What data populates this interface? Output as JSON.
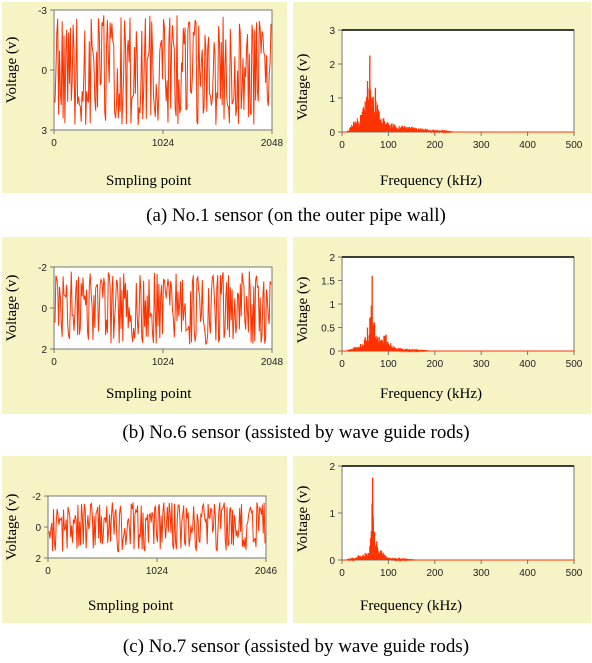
{
  "colors": {
    "panel_bg": "#f6f3c5",
    "plot_bg": "#ffffff",
    "signal": "#ff3300",
    "axis": "#777777",
    "frame": "#000000"
  },
  "rows": [
    {
      "caption": "(a)    No.1 sensor (on the outer pipe wall)",
      "time": {
        "ylabel": "Voltage (v)",
        "xlabel": "Smpling point",
        "xticks": [
          "0",
          "1024",
          "2048"
        ],
        "yticks": [
          "-3",
          "0",
          "3"
        ]
      },
      "freq": {
        "ylabel": "Voltage (v)",
        "xlabel": "Frequency (kHz)",
        "xticks": [
          "0",
          "100",
          "200",
          "300",
          "400",
          "500"
        ],
        "yticks": [
          "3",
          "2",
          "1",
          "0"
        ]
      }
    },
    {
      "caption": "(b)    No.6 sensor (assisted by wave guide rods)",
      "time": {
        "ylabel": "Voltage (v)",
        "xlabel": "Smpling point",
        "xticks": [
          "0",
          "1024",
          "2048"
        ],
        "yticks": [
          "-2",
          "0",
          "2"
        ]
      },
      "freq": {
        "ylabel": "Voltage (v)",
        "xlabel": "Frequency (kHz)",
        "xticks": [
          "0",
          "100",
          "200",
          "300",
          "400",
          "500"
        ],
        "yticks": [
          "2",
          "1.5",
          "1",
          "0.5",
          "0"
        ]
      }
    },
    {
      "caption": "(c)    No.7 sensor (assisted by wave guide rods)",
      "time": {
        "ylabel": "Voltage (v)",
        "xlabel": "Smpling point",
        "xticks": [
          "0",
          "1024",
          "2046"
        ],
        "yticks": [
          "-2",
          "0",
          "2"
        ]
      },
      "freq": {
        "ylabel": "Voltage (v)",
        "xlabel": "Frequency (kHz)",
        "xticks": [
          "0",
          "100",
          "200",
          "300",
          "400",
          "500"
        ],
        "yticks": [
          "2",
          "1",
          "0"
        ]
      }
    }
  ],
  "chart_data": [
    {
      "type": "line",
      "panel": "(a) time",
      "xlabel": "Smpling point",
      "ylabel": "Voltage (v)",
      "xlim": [
        0,
        2048
      ],
      "ylim": [
        3,
        -3
      ],
      "y_axis_inverted": true,
      "signal": "random noise-like waveform, amplitude approx. ±2.5 V"
    },
    {
      "type": "line",
      "panel": "(a) spectrum",
      "xlabel": "Frequency (kHz)",
      "ylabel": "Voltage (v)",
      "xlim": [
        0,
        500
      ],
      "ylim": [
        0,
        3
      ],
      "peaks": [
        {
          "x": 25,
          "y": 0.3
        },
        {
          "x": 40,
          "y": 0.5
        },
        {
          "x": 50,
          "y": 0.9
        },
        {
          "x": 55,
          "y": 1.5
        },
        {
          "x": 60,
          "y": 2.25
        },
        {
          "x": 65,
          "y": 1.0
        },
        {
          "x": 72,
          "y": 1.3
        },
        {
          "x": 80,
          "y": 0.6
        },
        {
          "x": 90,
          "y": 0.4
        },
        {
          "x": 110,
          "y": 0.25
        },
        {
          "x": 150,
          "y": 0.15
        },
        {
          "x": 180,
          "y": 0.1
        }
      ]
    },
    {
      "type": "line",
      "panel": "(b) time",
      "xlabel": "Smpling point",
      "ylabel": "Voltage (v)",
      "xlim": [
        0,
        2048
      ],
      "ylim": [
        2,
        -2
      ],
      "y_axis_inverted": true,
      "signal": "random noise-like waveform, amplitude approx. ±1.8 V"
    },
    {
      "type": "line",
      "panel": "(b) spectrum",
      "xlabel": "Frequency (kHz)",
      "ylabel": "Voltage (v)",
      "xlim": [
        0,
        500
      ],
      "ylim": [
        0,
        2
      ],
      "peaks": [
        {
          "x": 40,
          "y": 0.15
        },
        {
          "x": 50,
          "y": 0.3
        },
        {
          "x": 55,
          "y": 0.5
        },
        {
          "x": 60,
          "y": 0.7
        },
        {
          "x": 65,
          "y": 1.6
        },
        {
          "x": 70,
          "y": 0.6
        },
        {
          "x": 80,
          "y": 0.3
        },
        {
          "x": 95,
          "y": 0.35
        },
        {
          "x": 110,
          "y": 0.1
        },
        {
          "x": 130,
          "y": 0.05
        }
      ]
    },
    {
      "type": "line",
      "panel": "(c) time",
      "xlabel": "Smpling point",
      "ylabel": "Voltage (v)",
      "xlim": [
        0,
        2046
      ],
      "ylim": [
        2,
        -2
      ],
      "y_axis_inverted": true,
      "signal": "random noise-like waveform, amplitude approx. ±1.5 V"
    },
    {
      "type": "line",
      "panel": "(c) spectrum",
      "xlabel": "Frequency (kHz)",
      "ylabel": "Voltage (v)",
      "xlim": [
        0,
        500
      ],
      "ylim": [
        0,
        2
      ],
      "peaks": [
        {
          "x": 35,
          "y": 0.1
        },
        {
          "x": 50,
          "y": 0.15
        },
        {
          "x": 60,
          "y": 0.3
        },
        {
          "x": 66,
          "y": 1.75
        },
        {
          "x": 70,
          "y": 0.6
        },
        {
          "x": 75,
          "y": 0.4
        },
        {
          "x": 85,
          "y": 0.2
        },
        {
          "x": 100,
          "y": 0.05
        }
      ]
    }
  ]
}
